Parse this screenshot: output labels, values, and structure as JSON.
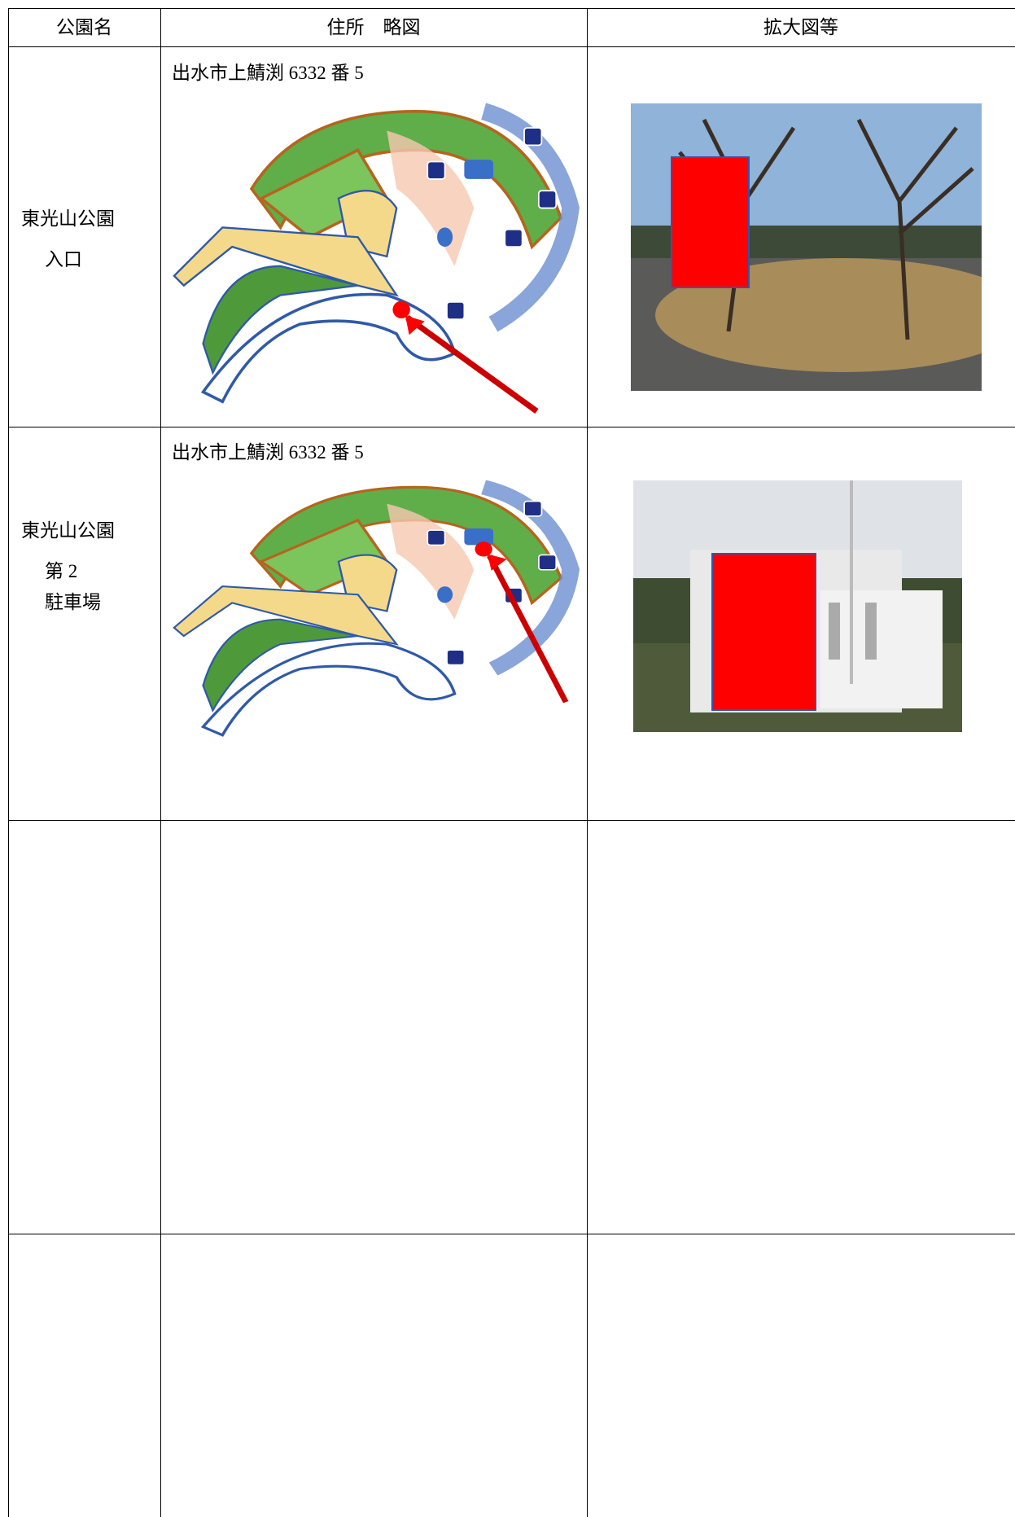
{
  "table": {
    "header": [
      "公園名",
      "住所　略図",
      "拡大図等"
    ],
    "rows": [
      {
        "name": [
          "東光山公園",
          "入口"
        ],
        "address": "出水市上鯖渕 6332 番 5"
      },
      {
        "name": [
          "東光山公園",
          "第 2",
          "駐車場"
        ],
        "address": "出水市上鯖渕 6332 番 5"
      }
    ]
  }
}
